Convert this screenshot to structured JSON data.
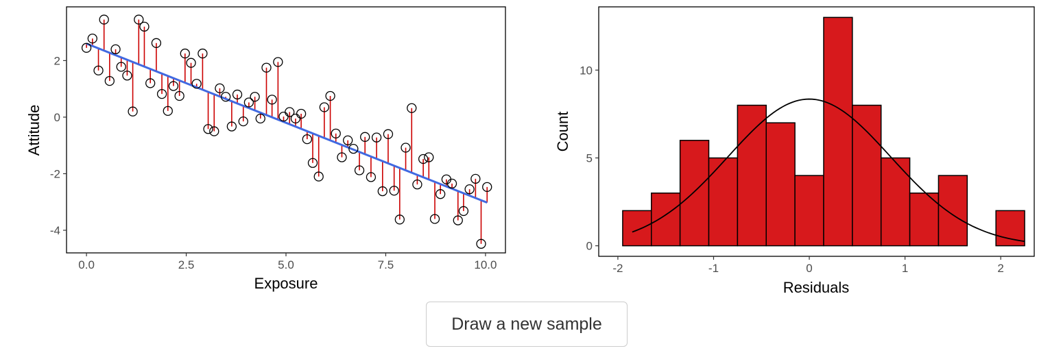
{
  "button": {
    "label": "Draw a new sample"
  },
  "colors": {
    "fit_line": "#4169e1",
    "residual_line": "#cc0000",
    "bar_fill": "#d7191c",
    "curve": "#000000",
    "point_stroke": "#000000"
  },
  "chart_data": [
    {
      "type": "scatter",
      "title": "",
      "xlabel": "Exposure",
      "ylabel": "Attitude",
      "xlim": [
        -0.5,
        10.5
      ],
      "ylim": [
        -4.8,
        3.9
      ],
      "xticks": [
        0,
        2.5,
        5,
        7.5,
        10
      ],
      "xtick_labels": [
        "0.0",
        "2.5",
        "5.0",
        "7.5",
        "10.0"
      ],
      "yticks": [
        -4,
        -2,
        0,
        2
      ],
      "ytick_labels": [
        "-4",
        "-2",
        "0",
        "2"
      ],
      "grid": false,
      "fit_line": {
        "intercept": 2.6,
        "slope": -0.56
      },
      "points": [
        {
          "x": 0.0,
          "y": 2.45
        },
        {
          "x": 0.15,
          "y": 2.78
        },
        {
          "x": 0.3,
          "y": 1.65
        },
        {
          "x": 0.44,
          "y": 3.45
        },
        {
          "x": 0.58,
          "y": 1.28
        },
        {
          "x": 0.73,
          "y": 2.4
        },
        {
          "x": 0.87,
          "y": 1.78
        },
        {
          "x": 1.02,
          "y": 1.47
        },
        {
          "x": 1.16,
          "y": 0.2
        },
        {
          "x": 1.31,
          "y": 3.45
        },
        {
          "x": 1.45,
          "y": 3.2
        },
        {
          "x": 1.6,
          "y": 1.2
        },
        {
          "x": 1.75,
          "y": 2.62
        },
        {
          "x": 1.89,
          "y": 0.82
        },
        {
          "x": 2.04,
          "y": 0.22
        },
        {
          "x": 2.18,
          "y": 1.1
        },
        {
          "x": 2.33,
          "y": 0.75
        },
        {
          "x": 2.47,
          "y": 2.25
        },
        {
          "x": 2.62,
          "y": 1.92
        },
        {
          "x": 2.76,
          "y": 1.18
        },
        {
          "x": 2.91,
          "y": 2.25
        },
        {
          "x": 3.05,
          "y": -0.42
        },
        {
          "x": 3.2,
          "y": -0.5
        },
        {
          "x": 3.34,
          "y": 1.02
        },
        {
          "x": 3.49,
          "y": 0.72
        },
        {
          "x": 3.64,
          "y": -0.33
        },
        {
          "x": 3.78,
          "y": 0.8
        },
        {
          "x": 3.93,
          "y": -0.15
        },
        {
          "x": 4.07,
          "y": 0.52
        },
        {
          "x": 4.22,
          "y": 0.72
        },
        {
          "x": 4.36,
          "y": -0.05
        },
        {
          "x": 4.51,
          "y": 1.75
        },
        {
          "x": 4.65,
          "y": 0.62
        },
        {
          "x": 4.8,
          "y": 1.95
        },
        {
          "x": 4.94,
          "y": 0.02
        },
        {
          "x": 5.09,
          "y": 0.18
        },
        {
          "x": 5.24,
          "y": -0.05
        },
        {
          "x": 5.38,
          "y": 0.12
        },
        {
          "x": 5.53,
          "y": -0.78
        },
        {
          "x": 5.67,
          "y": -1.62
        },
        {
          "x": 5.82,
          "y": -2.1
        },
        {
          "x": 5.96,
          "y": 0.35
        },
        {
          "x": 6.11,
          "y": 0.75
        },
        {
          "x": 6.25,
          "y": -0.58
        },
        {
          "x": 6.4,
          "y": -1.42
        },
        {
          "x": 6.55,
          "y": -0.82
        },
        {
          "x": 6.69,
          "y": -1.12
        },
        {
          "x": 6.84,
          "y": -1.88
        },
        {
          "x": 6.98,
          "y": -0.7
        },
        {
          "x": 7.13,
          "y": -2.12
        },
        {
          "x": 7.27,
          "y": -0.72
        },
        {
          "x": 7.42,
          "y": -2.62
        },
        {
          "x": 7.56,
          "y": -0.6
        },
        {
          "x": 7.71,
          "y": -2.6
        },
        {
          "x": 7.85,
          "y": -3.62
        },
        {
          "x": 8.0,
          "y": -1.08
        },
        {
          "x": 8.15,
          "y": 0.32
        },
        {
          "x": 8.29,
          "y": -2.38
        },
        {
          "x": 8.44,
          "y": -1.48
        },
        {
          "x": 8.58,
          "y": -1.42
        },
        {
          "x": 8.73,
          "y": -3.6
        },
        {
          "x": 8.87,
          "y": -2.72
        },
        {
          "x": 9.02,
          "y": -2.2
        },
        {
          "x": 9.16,
          "y": -2.35
        },
        {
          "x": 9.31,
          "y": -3.65
        },
        {
          "x": 9.45,
          "y": -3.32
        },
        {
          "x": 9.6,
          "y": -2.55
        },
        {
          "x": 9.75,
          "y": -2.18
        },
        {
          "x": 9.89,
          "y": -4.48
        },
        {
          "x": 10.04,
          "y": -2.47
        }
      ]
    },
    {
      "type": "bar",
      "title": "",
      "xlabel": "Residuals",
      "ylabel": "Count",
      "xlim": [
        -2.2,
        2.35
      ],
      "ylim": [
        -0.6,
        13.6
      ],
      "xticks": [
        -2,
        -1,
        0,
        1,
        2
      ],
      "xtick_labels": [
        "-2",
        "-1",
        "0",
        "1",
        "2"
      ],
      "yticks": [
        0,
        5,
        10
      ],
      "ytick_labels": [
        "0",
        "5",
        "10"
      ],
      "grid": false,
      "bins": [
        {
          "start": -1.95,
          "end": -1.65,
          "count": 2
        },
        {
          "start": -1.65,
          "end": -1.35,
          "count": 3
        },
        {
          "start": -1.35,
          "end": -1.05,
          "count": 6
        },
        {
          "start": -1.05,
          "end": -0.75,
          "count": 5
        },
        {
          "start": -0.75,
          "end": -0.45,
          "count": 8
        },
        {
          "start": -0.45,
          "end": -0.15,
          "count": 7
        },
        {
          "start": -0.15,
          "end": 0.15,
          "count": 4
        },
        {
          "start": 0.15,
          "end": 0.45,
          "count": 13
        },
        {
          "start": 0.45,
          "end": 0.75,
          "count": 8
        },
        {
          "start": 0.75,
          "end": 1.05,
          "count": 5
        },
        {
          "start": 1.05,
          "end": 1.35,
          "count": 3
        },
        {
          "start": 1.35,
          "end": 1.65,
          "count": 4
        },
        {
          "start": 1.65,
          "end": 1.95,
          "count": 0
        },
        {
          "start": 1.95,
          "end": 2.25,
          "count": 2
        }
      ],
      "normal_curve": {
        "mean": 0.0,
        "sd": 0.85,
        "peak": 8.35,
        "x_from": -1.85,
        "x_to": 2.25
      }
    }
  ]
}
